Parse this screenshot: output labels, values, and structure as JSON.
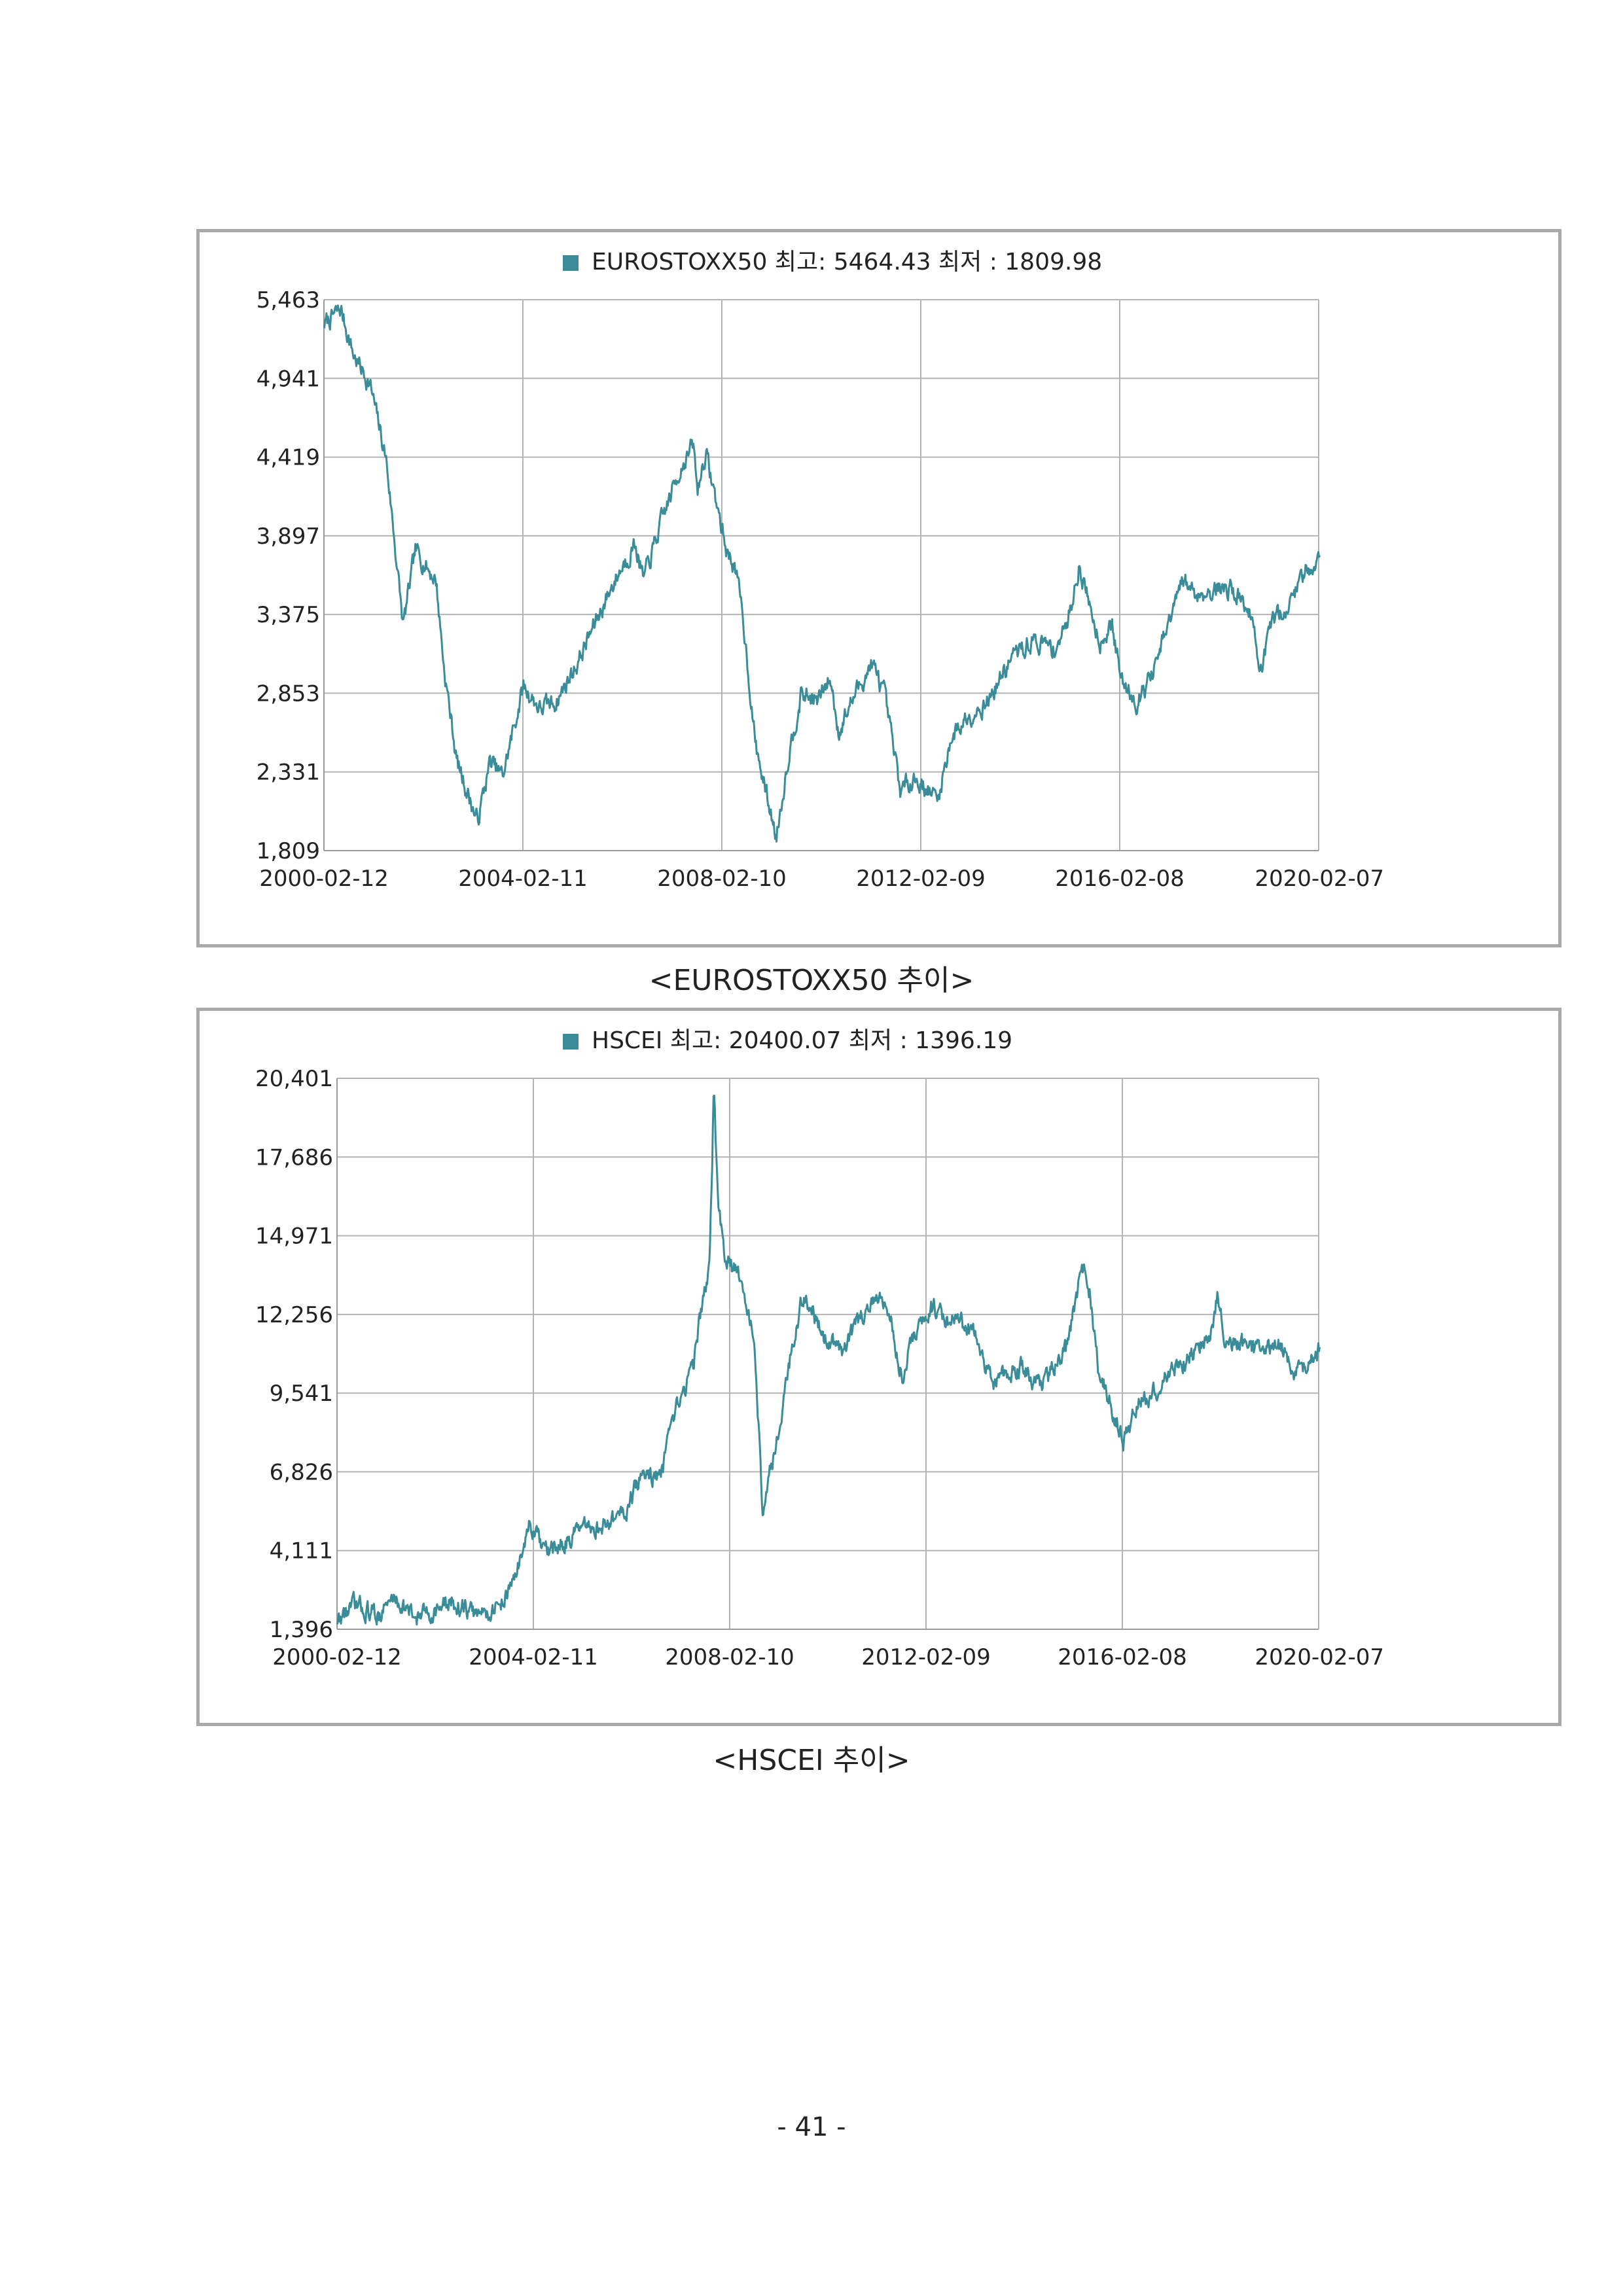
{
  "page_number": "- 41 -",
  "chart_data": [
    {
      "id": "eurostoxx",
      "type": "line",
      "title": "EUROSTOXX50 최고: 5464.43 최저 : 1809.98",
      "legend_placement": "top-center",
      "caption": "<EUROSTOXX50 추이>",
      "series_color": "#3a8c98",
      "grid": true,
      "ylim": [
        1809,
        5463
      ],
      "y_ticks": [
        "5,463",
        "4,941",
        "4,419",
        "3,897",
        "3,375",
        "2,853",
        "2,331",
        "1,809"
      ],
      "y_tick_values": [
        5463,
        4941,
        4419,
        3897,
        3375,
        2853,
        2331,
        1809
      ],
      "x_ticks": [
        "2000-02-12",
        "2004-02-11",
        "2008-02-10",
        "2012-02-09",
        "2016-02-08",
        "2020-02-07"
      ],
      "xlim": [
        "2000-02-12",
        "2020-02-07"
      ],
      "series": [
        {
          "x": [
            "2000-02",
            "2000-06",
            "2000-09",
            "2001-01",
            "2001-05",
            "2001-09",
            "2001-12",
            "2002-05",
            "2002-07",
            "2002-10",
            "2003-03",
            "2003-06",
            "2003-09",
            "2004-02",
            "2004-06",
            "2004-10",
            "2005-03",
            "2005-07",
            "2005-12",
            "2006-05",
            "2006-07",
            "2006-12",
            "2007-04",
            "2007-07",
            "2007-08",
            "2007-10",
            "2008-03",
            "2008-05",
            "2008-07",
            "2008-10",
            "2009-03",
            "2009-06",
            "2009-09",
            "2010-01",
            "2010-04",
            "2010-06",
            "2010-10",
            "2011-02",
            "2011-05",
            "2011-09",
            "2011-12",
            "2012-06",
            "2012-09",
            "2013-01",
            "2013-06",
            "2013-12",
            "2014-05",
            "2014-10",
            "2015-01",
            "2015-04",
            "2015-07",
            "2015-09",
            "2015-12",
            "2016-02",
            "2016-06",
            "2016-10",
            "2017-05",
            "2017-09",
            "2018-01",
            "2018-05",
            "2018-09",
            "2018-12",
            "2019-03",
            "2019-07",
            "2019-10",
            "2020-02"
          ],
          "y": [
            5300,
            5400,
            5100,
            4900,
            4400,
            3300,
            3800,
            3600,
            3000,
            2400,
            2000,
            2400,
            2300,
            2900,
            2750,
            2800,
            3050,
            3300,
            3600,
            3850,
            3600,
            4050,
            4350,
            4500,
            4200,
            4450,
            3800,
            3700,
            3350,
            2500,
            1900,
            2450,
            2850,
            2800,
            2950,
            2600,
            2850,
            3050,
            2850,
            2200,
            2300,
            2150,
            2550,
            2700,
            2800,
            3100,
            3200,
            3150,
            3300,
            3700,
            3400,
            3200,
            3300,
            2950,
            2800,
            3000,
            3600,
            3500,
            3550,
            3550,
            3400,
            3000,
            3350,
            3450,
            3650,
            3750
          ]
        }
      ]
    },
    {
      "id": "hscei",
      "type": "line",
      "title": "HSCEI 최고: 20400.07 최저 : 1396.19",
      "legend_placement": "top-center",
      "caption": "<HSCEI 추이>",
      "series_color": "#3a8c98",
      "grid": true,
      "ylim": [
        1396,
        20401
      ],
      "y_ticks": [
        "20,401",
        "17,686",
        "14,971",
        "12,256",
        "9,541",
        "6,826",
        "4,111",
        "1,396"
      ],
      "y_tick_values": [
        20401,
        17686,
        14971,
        12256,
        9541,
        6826,
        4111,
        1396
      ],
      "x_ticks": [
        "2000-02-12",
        "2004-02-11",
        "2008-02-10",
        "2012-02-09",
        "2016-02-08",
        "2020-02-07"
      ],
      "xlim": [
        "2000-02-12",
        "2020-02-07"
      ],
      "series": [
        {
          "x": [
            "2000-02",
            "2000-06",
            "2000-12",
            "2001-04",
            "2001-09",
            "2002-01",
            "2002-06",
            "2002-12",
            "2003-05",
            "2003-09",
            "2004-01",
            "2004-04",
            "2004-06",
            "2004-12",
            "2005-06",
            "2005-12",
            "2006-05",
            "2006-09",
            "2007-01",
            "2007-05",
            "2007-07",
            "2007-09",
            "2007-10",
            "2007-11",
            "2008-01",
            "2008-05",
            "2008-08",
            "2008-10",
            "2008-12",
            "2009-05",
            "2009-08",
            "2010-01",
            "2010-06",
            "2010-11",
            "2011-04",
            "2011-08",
            "2011-10",
            "2012-03",
            "2012-09",
            "2013-01",
            "2013-06",
            "2014-01",
            "2014-06",
            "2014-12",
            "2015-04",
            "2015-06",
            "2015-08",
            "2016-01",
            "2016-02",
            "2016-05",
            "2016-09",
            "2017-01",
            "2017-06",
            "2017-12",
            "2018-01",
            "2018-03",
            "2018-10",
            "2019-04",
            "2019-08",
            "2019-12",
            "2020-02"
          ],
          "y": [
            1700,
            2200,
            1900,
            2500,
            1800,
            2000,
            2300,
            1900,
            2100,
            3000,
            5000,
            4200,
            4000,
            4700,
            4900,
            5400,
            6800,
            6600,
            9000,
            10500,
            12500,
            14000,
            20000,
            16000,
            14000,
            13500,
            11000,
            5200,
            7000,
            11000,
            13000,
            11500,
            11000,
            12500,
            12800,
            10200,
            11200,
            12500,
            12000,
            11700,
            9800,
            10500,
            9800,
            11000,
            14000,
            13000,
            10300,
            8400,
            7800,
            9000,
            9500,
            10200,
            10800,
            11800,
            13000,
            11500,
            11000,
            11300,
            10200,
            10800,
            11000
          ]
        }
      ]
    }
  ]
}
